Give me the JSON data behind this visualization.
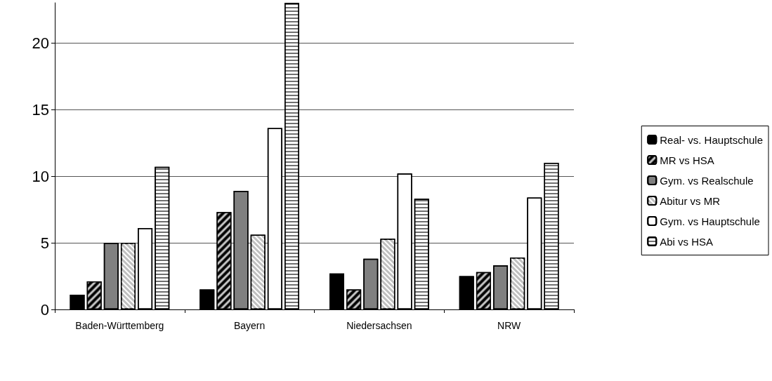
{
  "chart_data": {
    "type": "bar",
    "categories": [
      "Baden-Württemberg",
      "Bayern",
      "Niedersachsen",
      "NRW"
    ],
    "series": [
      {
        "name": "Real- vs. Hauptschule",
        "color": "#000000",
        "values": [
          1.1,
          1.5,
          2.7,
          2.5
        ]
      },
      {
        "name": "MR vs HSA",
        "color": "#000000",
        "values": [
          2.1,
          7.3,
          1.5,
          2.8
        ]
      },
      {
        "name": "Gym. vs Realschule",
        "color": "#808080",
        "values": [
          5.0,
          8.9,
          3.8,
          3.3
        ]
      },
      {
        "name": "Abitur vs MR",
        "color": "#c0c0c0",
        "values": [
          5.0,
          5.6,
          5.3,
          3.9
        ]
      },
      {
        "name": "Gym. vs Hauptschule",
        "color": "#ffffff",
        "values": [
          6.1,
          13.6,
          10.2,
          8.4
        ]
      },
      {
        "name": "Abi vs HSA",
        "color": "#ffffff",
        "values": [
          10.7,
          23,
          8.3,
          11.0
        ]
      }
    ],
    "ylim": [
      0,
      23
    ],
    "yticks": [
      0,
      5,
      10,
      15,
      20
    ],
    "grid": "y",
    "legend": "right"
  }
}
